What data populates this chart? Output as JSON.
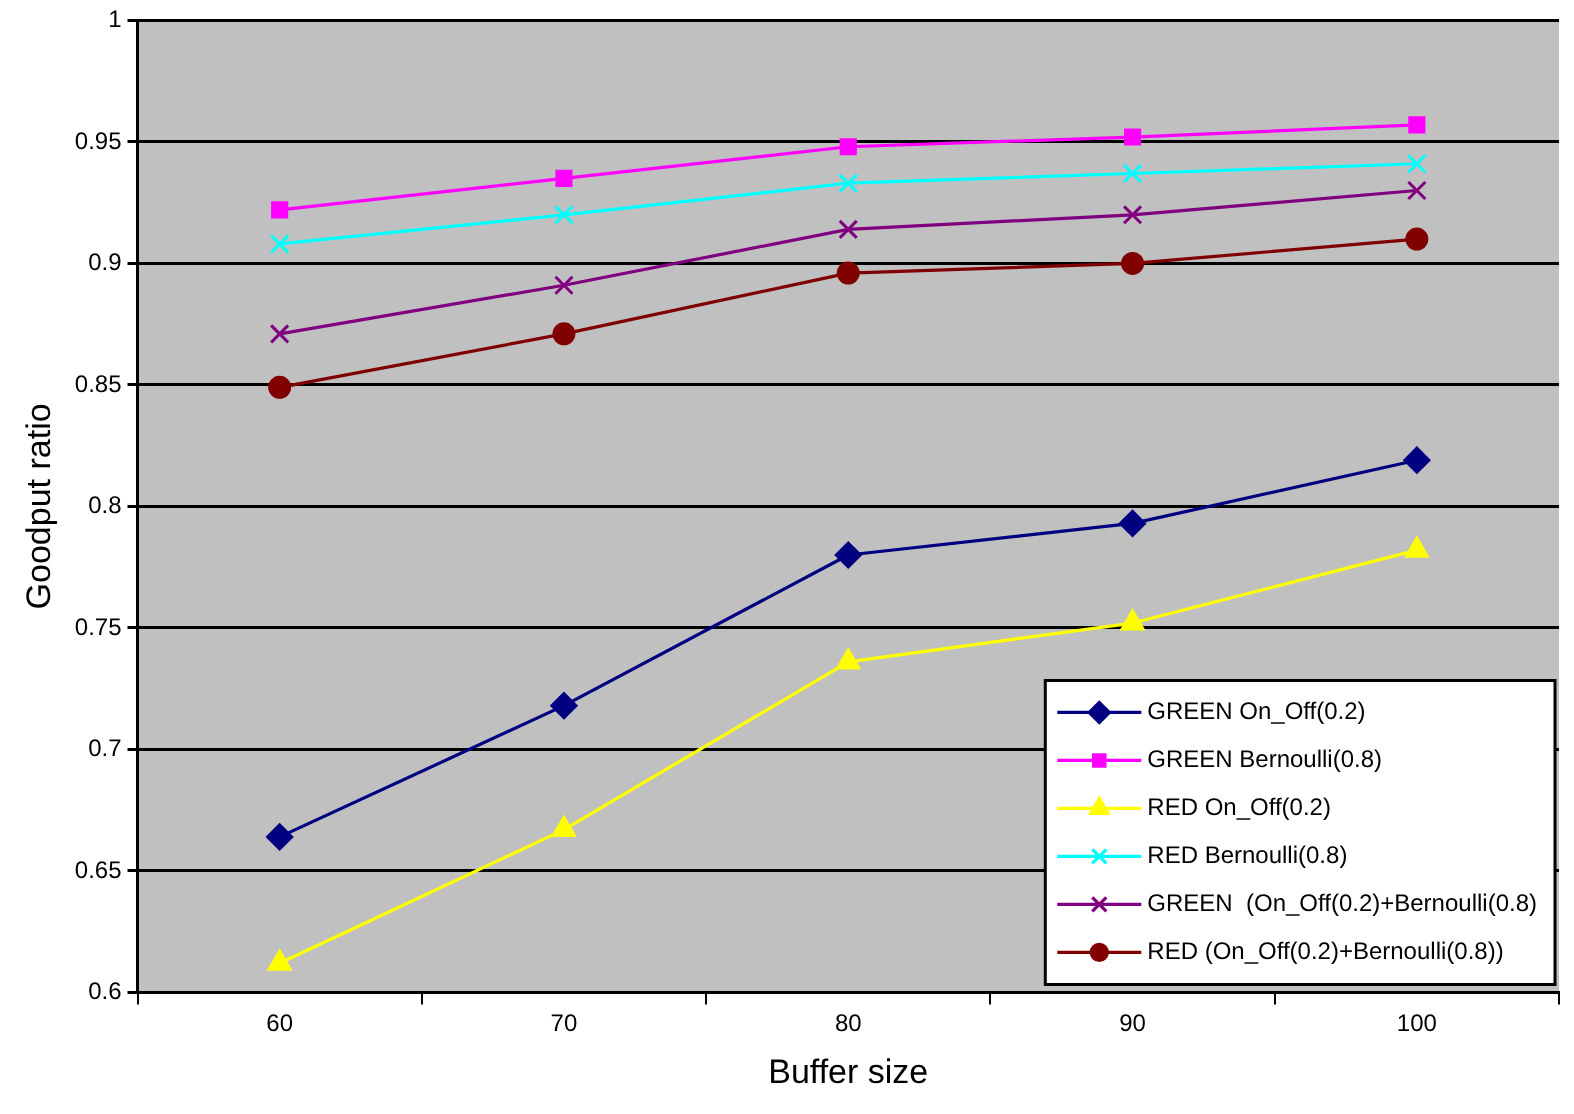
{
  "chart_data": {
    "type": "line",
    "xlabel": "Buffer size",
    "ylabel": "Goodput ratio",
    "categories": [
      "60",
      "70",
      "80",
      "90",
      "100"
    ],
    "ylim": [
      0.6,
      1
    ],
    "yticks": [
      0.6,
      0.65,
      0.7,
      0.75,
      0.8,
      0.85,
      0.9,
      0.95,
      1
    ],
    "grid": "y",
    "legend": "bottom right",
    "series": [
      {
        "name": "GREEN On_Off(0.2)",
        "color": "#000080",
        "marker": "diamond",
        "values": [
          0.664,
          0.718,
          0.78,
          0.793,
          0.819
        ]
      },
      {
        "name": "GREEN Bernoulli(0.8)",
        "color": "#ff00ff",
        "marker": "square",
        "values": [
          0.922,
          0.935,
          0.948,
          0.952,
          0.957
        ]
      },
      {
        "name": "RED On_Off(0.2)",
        "color": "#ffff00",
        "marker": "triangle",
        "values": [
          0.612,
          0.667,
          0.736,
          0.752,
          0.782
        ]
      },
      {
        "name": "RED Bernoulli(0.8)",
        "color": "#00ffff",
        "marker": "cross",
        "values": [
          0.908,
          0.92,
          0.933,
          0.937,
          0.941
        ]
      },
      {
        "name": "GREEN  (On_Off(0.2)+Bernoulli(0.8)",
        "color": "#800080",
        "marker": "cross",
        "values": [
          0.871,
          0.891,
          0.914,
          0.92,
          0.93
        ]
      },
      {
        "name": "RED (On_Off(0.2)+Bernoulli(0.8))",
        "color": "#800000",
        "marker": "circle",
        "values": [
          0.849,
          0.871,
          0.896,
          0.9,
          0.91
        ]
      }
    ]
  }
}
